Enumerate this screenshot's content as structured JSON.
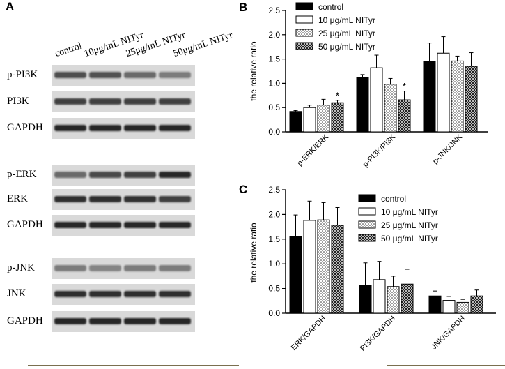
{
  "panels": {
    "a": "A",
    "b": "B",
    "c": "C"
  },
  "blot": {
    "columns": [
      "control",
      "10μg/mL NITyr",
      "25μg/mL NITyr",
      "50μg/mL NITyr"
    ],
    "rows": [
      {
        "label": "p-PI3K",
        "intensity": [
          0.72,
          0.7,
          0.55,
          0.45
        ]
      },
      {
        "label": "PI3K",
        "intensity": [
          0.8,
          0.8,
          0.8,
          0.8
        ]
      },
      {
        "label": "GAPDH",
        "intensity": [
          0.95,
          0.95,
          0.95,
          0.95
        ]
      },
      {
        "label": "p-ERK",
        "intensity": [
          0.55,
          0.75,
          0.8,
          0.95
        ]
      },
      {
        "label": "ERK",
        "intensity": [
          0.9,
          0.9,
          0.88,
          0.8
        ]
      },
      {
        "label": "GAPDH",
        "intensity": [
          0.95,
          0.95,
          0.95,
          0.95
        ]
      },
      {
        "label": "p-JNK",
        "intensity": [
          0.45,
          0.4,
          0.45,
          0.45
        ]
      },
      {
        "label": "JNK",
        "intensity": [
          0.9,
          0.9,
          0.9,
          0.9
        ]
      },
      {
        "label": "GAPDH",
        "intensity": [
          0.95,
          0.95,
          0.95,
          0.95
        ]
      }
    ]
  },
  "chart_data": [
    {
      "panel": "B",
      "type": "bar",
      "ylabel": "the relative ratio",
      "ylim": [
        0,
        2.5
      ],
      "yticks": [
        "0.0",
        "0.5",
        "1.0",
        "1.5",
        "2.0",
        "2.5"
      ],
      "categories": [
        "p-ERK/ERK",
        "p-PI3K/PI3K",
        "p-JNK/JNK"
      ],
      "legend_position": "top-left",
      "series": [
        {
          "name": "control",
          "values": [
            0.42,
            1.12,
            1.45
          ],
          "errors": [
            0.02,
            0.06,
            0.38
          ],
          "fill": "black"
        },
        {
          "name": "10 μg/mL NITyr",
          "values": [
            0.5,
            1.32,
            1.62
          ],
          "errors": [
            0.05,
            0.26,
            0.34
          ],
          "fill": "white"
        },
        {
          "name": "25 μg/mL NITyr",
          "values": [
            0.55,
            0.98,
            1.46
          ],
          "errors": [
            0.12,
            0.12,
            0.1
          ],
          "fill": "dots"
        },
        {
          "name": "50 μg/mL NITyr",
          "values": [
            0.6,
            0.66,
            1.35
          ],
          "errors": [
            0.05,
            0.18,
            0.28
          ],
          "fill": "checker"
        }
      ],
      "annotations": [
        {
          "category": "p-ERK/ERK",
          "series": "50 μg/mL NITyr",
          "text": "*"
        },
        {
          "category": "p-PI3K/PI3K",
          "series": "50 μg/mL NITyr",
          "text": "*"
        }
      ]
    },
    {
      "panel": "C",
      "type": "bar",
      "ylabel": "the relative ratio",
      "ylim": [
        0,
        2.5
      ],
      "yticks": [
        "0.0",
        "0.5",
        "1.0",
        "1.5",
        "2.0",
        "2.5"
      ],
      "categories": [
        "ERK/GAPDH",
        "PI3K/GAPDH",
        "JNK/GAPDH"
      ],
      "legend_position": "right",
      "series": [
        {
          "name": "control",
          "values": [
            1.56,
            0.57,
            0.35
          ],
          "errors": [
            0.43,
            0.45,
            0.1
          ],
          "fill": "black"
        },
        {
          "name": "10 μg/mL NITyr",
          "values": [
            1.88,
            0.68,
            0.26
          ],
          "errors": [
            0.39,
            0.37,
            0.08
          ],
          "fill": "white"
        },
        {
          "name": "25 μg/mL NITyr",
          "values": [
            1.89,
            0.54,
            0.22
          ],
          "errors": [
            0.35,
            0.21,
            0.06
          ],
          "fill": "dots"
        },
        {
          "name": "50 μg/mL NITyr",
          "values": [
            1.78,
            0.59,
            0.35
          ],
          "errors": [
            0.36,
            0.3,
            0.12
          ],
          "fill": "checker"
        }
      ],
      "annotations": []
    }
  ]
}
